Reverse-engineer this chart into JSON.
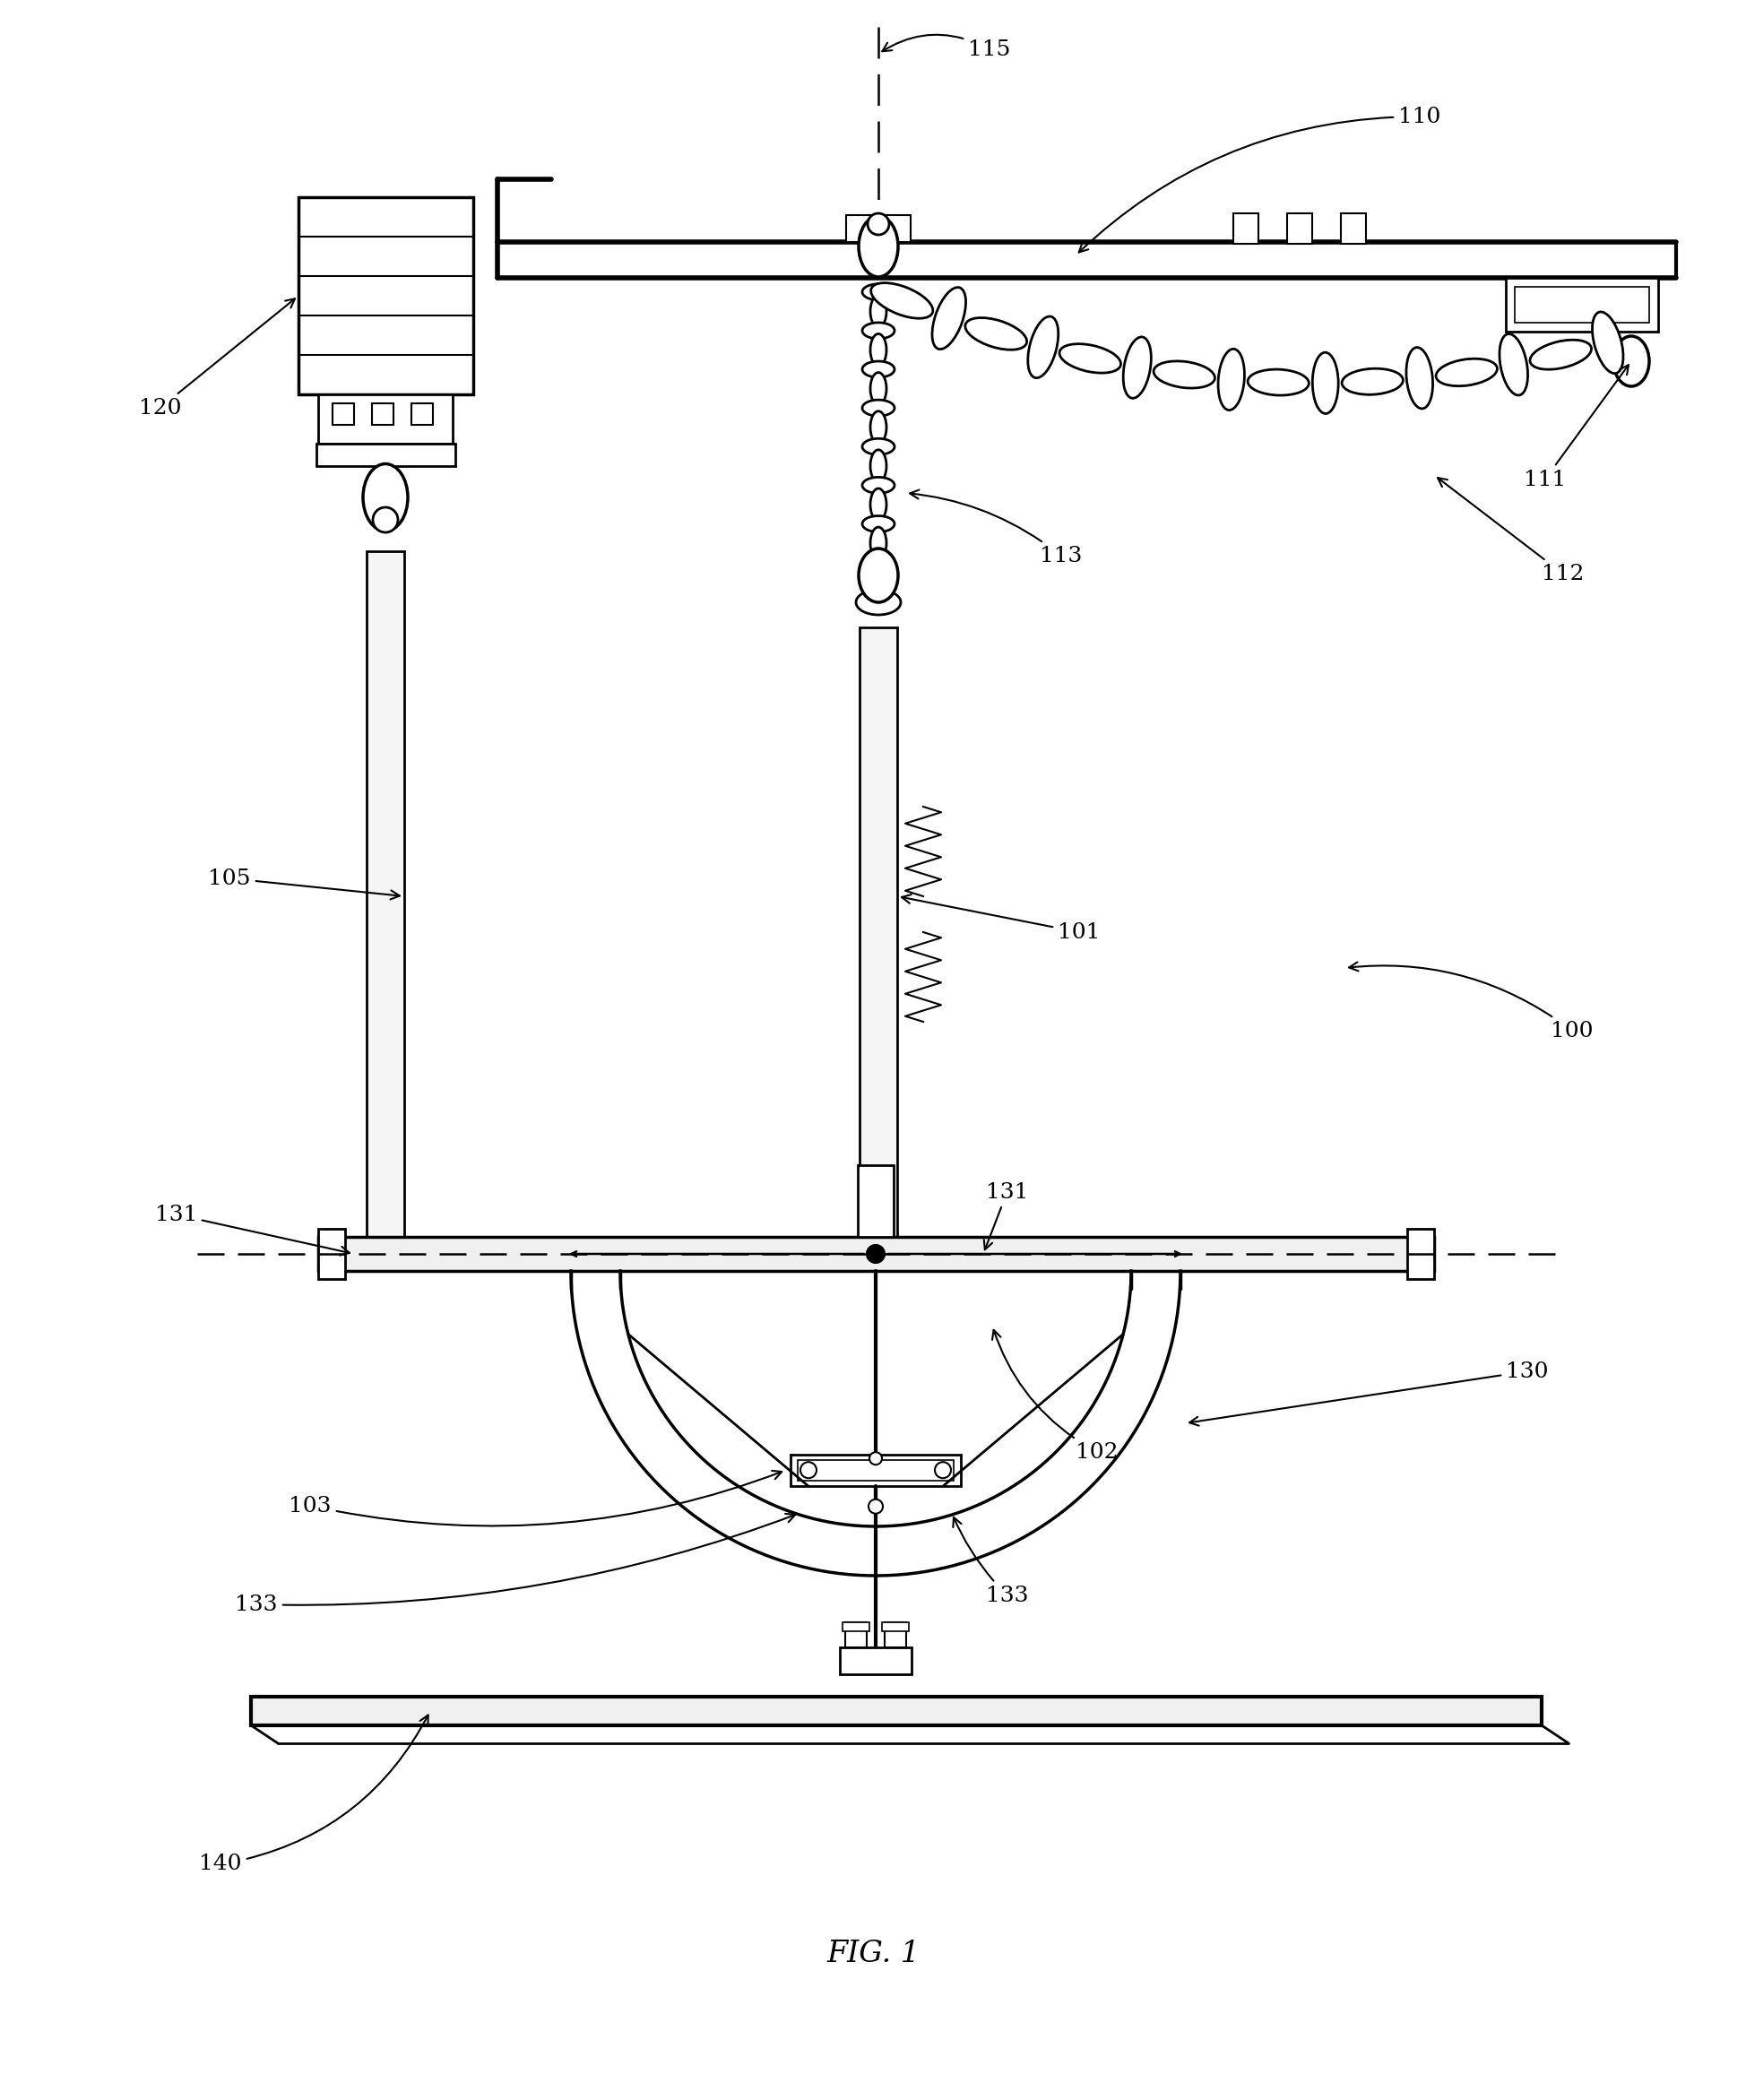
{
  "fig_width": 19.49,
  "fig_height": 23.43,
  "bg_color": "#ffffff",
  "title": "FIG. 1",
  "fontsize_label": 18,
  "fontsize_title": 24
}
